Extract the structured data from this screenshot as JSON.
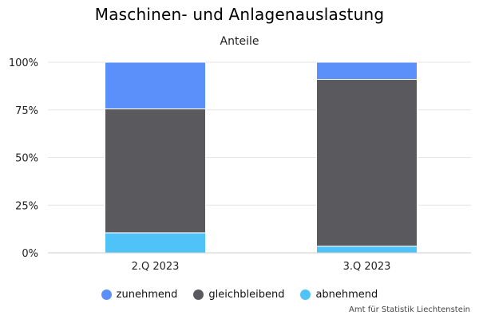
{
  "chart_data": {
    "type": "bar",
    "stacked": true,
    "title": "Maschinen- und Anlagenauslastung",
    "subtitle": "Anteile",
    "categories": [
      "2.Q 2023",
      "3.Q 2023"
    ],
    "series": [
      {
        "name": "abnehmend",
        "color": "#4fc3f7",
        "values": [
          10.5,
          3.5
        ]
      },
      {
        "name": "gleichbleibend",
        "color": "#5a5a5e",
        "values": [
          65,
          87.5
        ]
      },
      {
        "name": "zunehmend",
        "color": "#5b8ff9",
        "values": [
          24.5,
          9
        ]
      }
    ],
    "legend_order": [
      "zunehmend",
      "gleichbleibend",
      "abnehmend"
    ],
    "yticks": [
      "0%",
      "25%",
      "50%",
      "75%",
      "100%"
    ],
    "ylim": [
      0,
      100
    ],
    "grid": true,
    "legend_position": "bottom"
  },
  "credit": "Amt für Statistik Liechtenstein"
}
